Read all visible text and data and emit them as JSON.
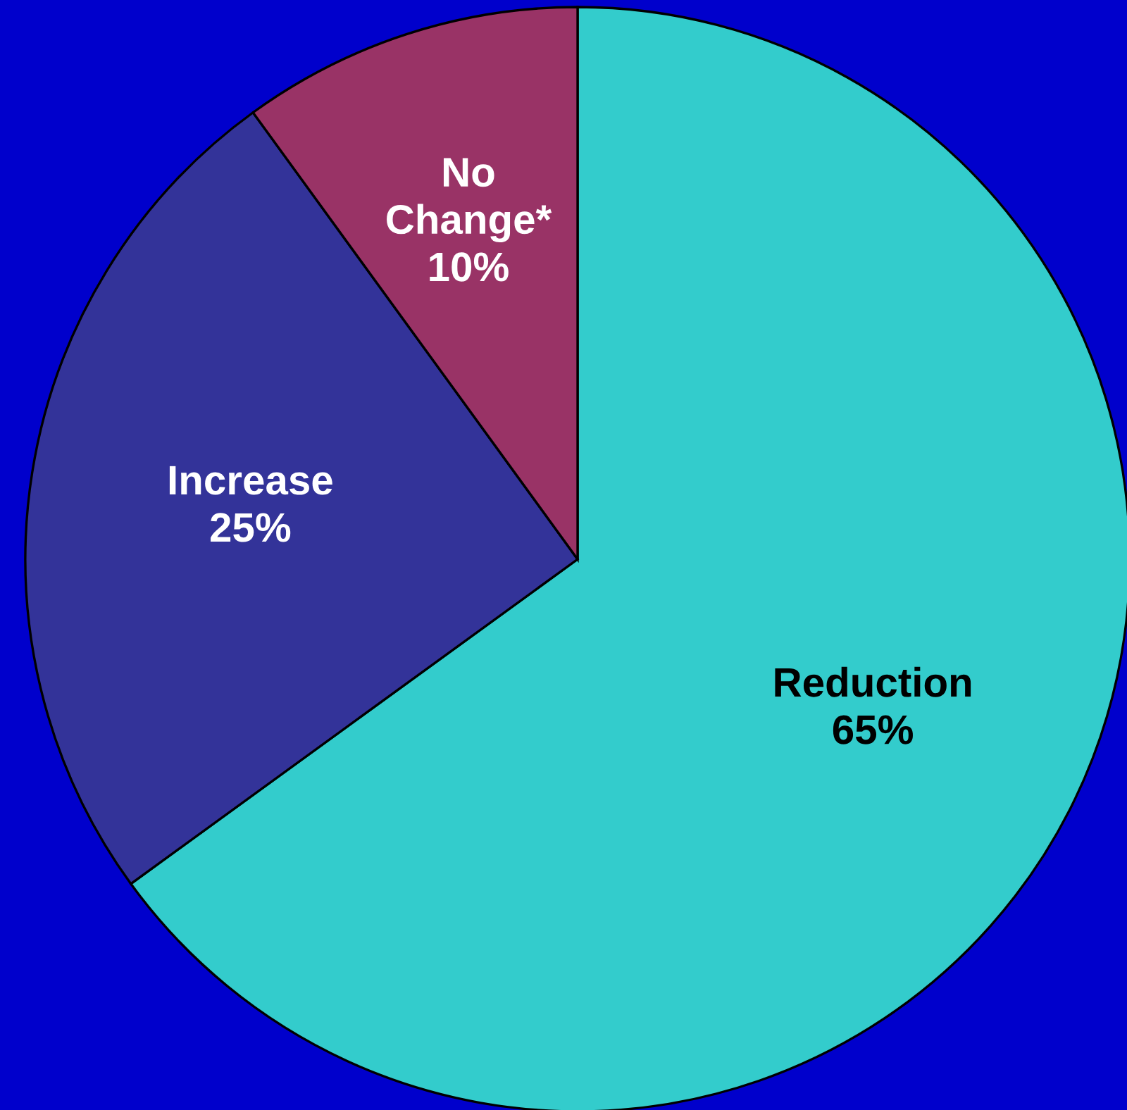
{
  "chart_data": {
    "type": "pie",
    "categories": [
      "Reduction",
      "Increase",
      "No Change*"
    ],
    "values": [
      65,
      25,
      10
    ],
    "value_labels": [
      "65%",
      "25%",
      "10%"
    ],
    "colors": [
      "#33cccc",
      "#333399",
      "#993366"
    ]
  }
}
